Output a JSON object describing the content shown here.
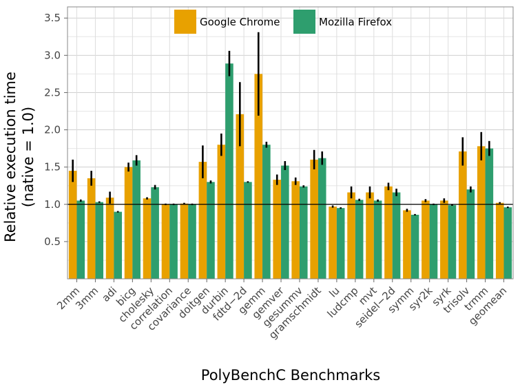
{
  "chart_data": {
    "type": "bar",
    "xlabel": "PolyBenchC Benchmarks",
    "ylabel_lines": [
      "Relative execution time",
      "(native = 1.0)"
    ],
    "ylim": [
      0,
      3.65
    ],
    "yticks": [
      0.5,
      1.0,
      1.5,
      2.0,
      2.5,
      3.0,
      3.5
    ],
    "ytick_labels": [
      "0.5",
      "1.0",
      "1.5",
      "2.0",
      "2.5",
      "3.0",
      "3.5"
    ],
    "reference_line": 1.0,
    "grid": true,
    "legend_position": "top-center",
    "categories": [
      "2mm",
      "3mm",
      "adi",
      "bicg",
      "cholesky",
      "correlation",
      "covariance",
      "doitgen",
      "durbin",
      "fdtd−2d",
      "gemm",
      "gemver",
      "gesummv",
      "gramschmidt",
      "lu",
      "ludcmp",
      "mvt",
      "seidel−2d",
      "symm",
      "syr2k",
      "syrk",
      "trisolv",
      "trmm",
      "geomean"
    ],
    "series": [
      {
        "name": "Google Chrome",
        "color": "#E8A100",
        "values": [
          1.45,
          1.35,
          1.09,
          1.5,
          1.08,
          1.0,
          1.01,
          1.57,
          1.8,
          2.21,
          2.75,
          1.33,
          1.31,
          1.6,
          0.97,
          1.16,
          1.16,
          1.24,
          0.92,
          1.05,
          1.05,
          1.71,
          1.78,
          1.02
        ],
        "errors": [
          0.15,
          0.1,
          0.08,
          0.06,
          0.015,
          0.01,
          0.01,
          0.22,
          0.15,
          0.43,
          0.56,
          0.07,
          0.05,
          0.13,
          0.015,
          0.08,
          0.08,
          0.05,
          0.02,
          0.02,
          0.03,
          0.19,
          0.19,
          0.01
        ]
      },
      {
        "name": "Mozilla Firefox",
        "color": "#2E9E6E",
        "values": [
          1.05,
          1.03,
          0.9,
          1.59,
          1.23,
          1.0,
          1.0,
          1.3,
          2.89,
          1.3,
          1.8,
          1.52,
          1.24,
          1.62,
          0.95,
          1.06,
          1.05,
          1.16,
          0.86,
          1.0,
          0.99,
          1.2,
          1.75,
          0.96
        ],
        "errors": [
          0.015,
          0.01,
          0.01,
          0.07,
          0.03,
          0.01,
          0.01,
          0.02,
          0.17,
          0.01,
          0.04,
          0.06,
          0.015,
          0.09,
          0.01,
          0.015,
          0.015,
          0.05,
          0.01,
          0.01,
          0.01,
          0.04,
          0.1,
          0.01
        ]
      }
    ]
  }
}
